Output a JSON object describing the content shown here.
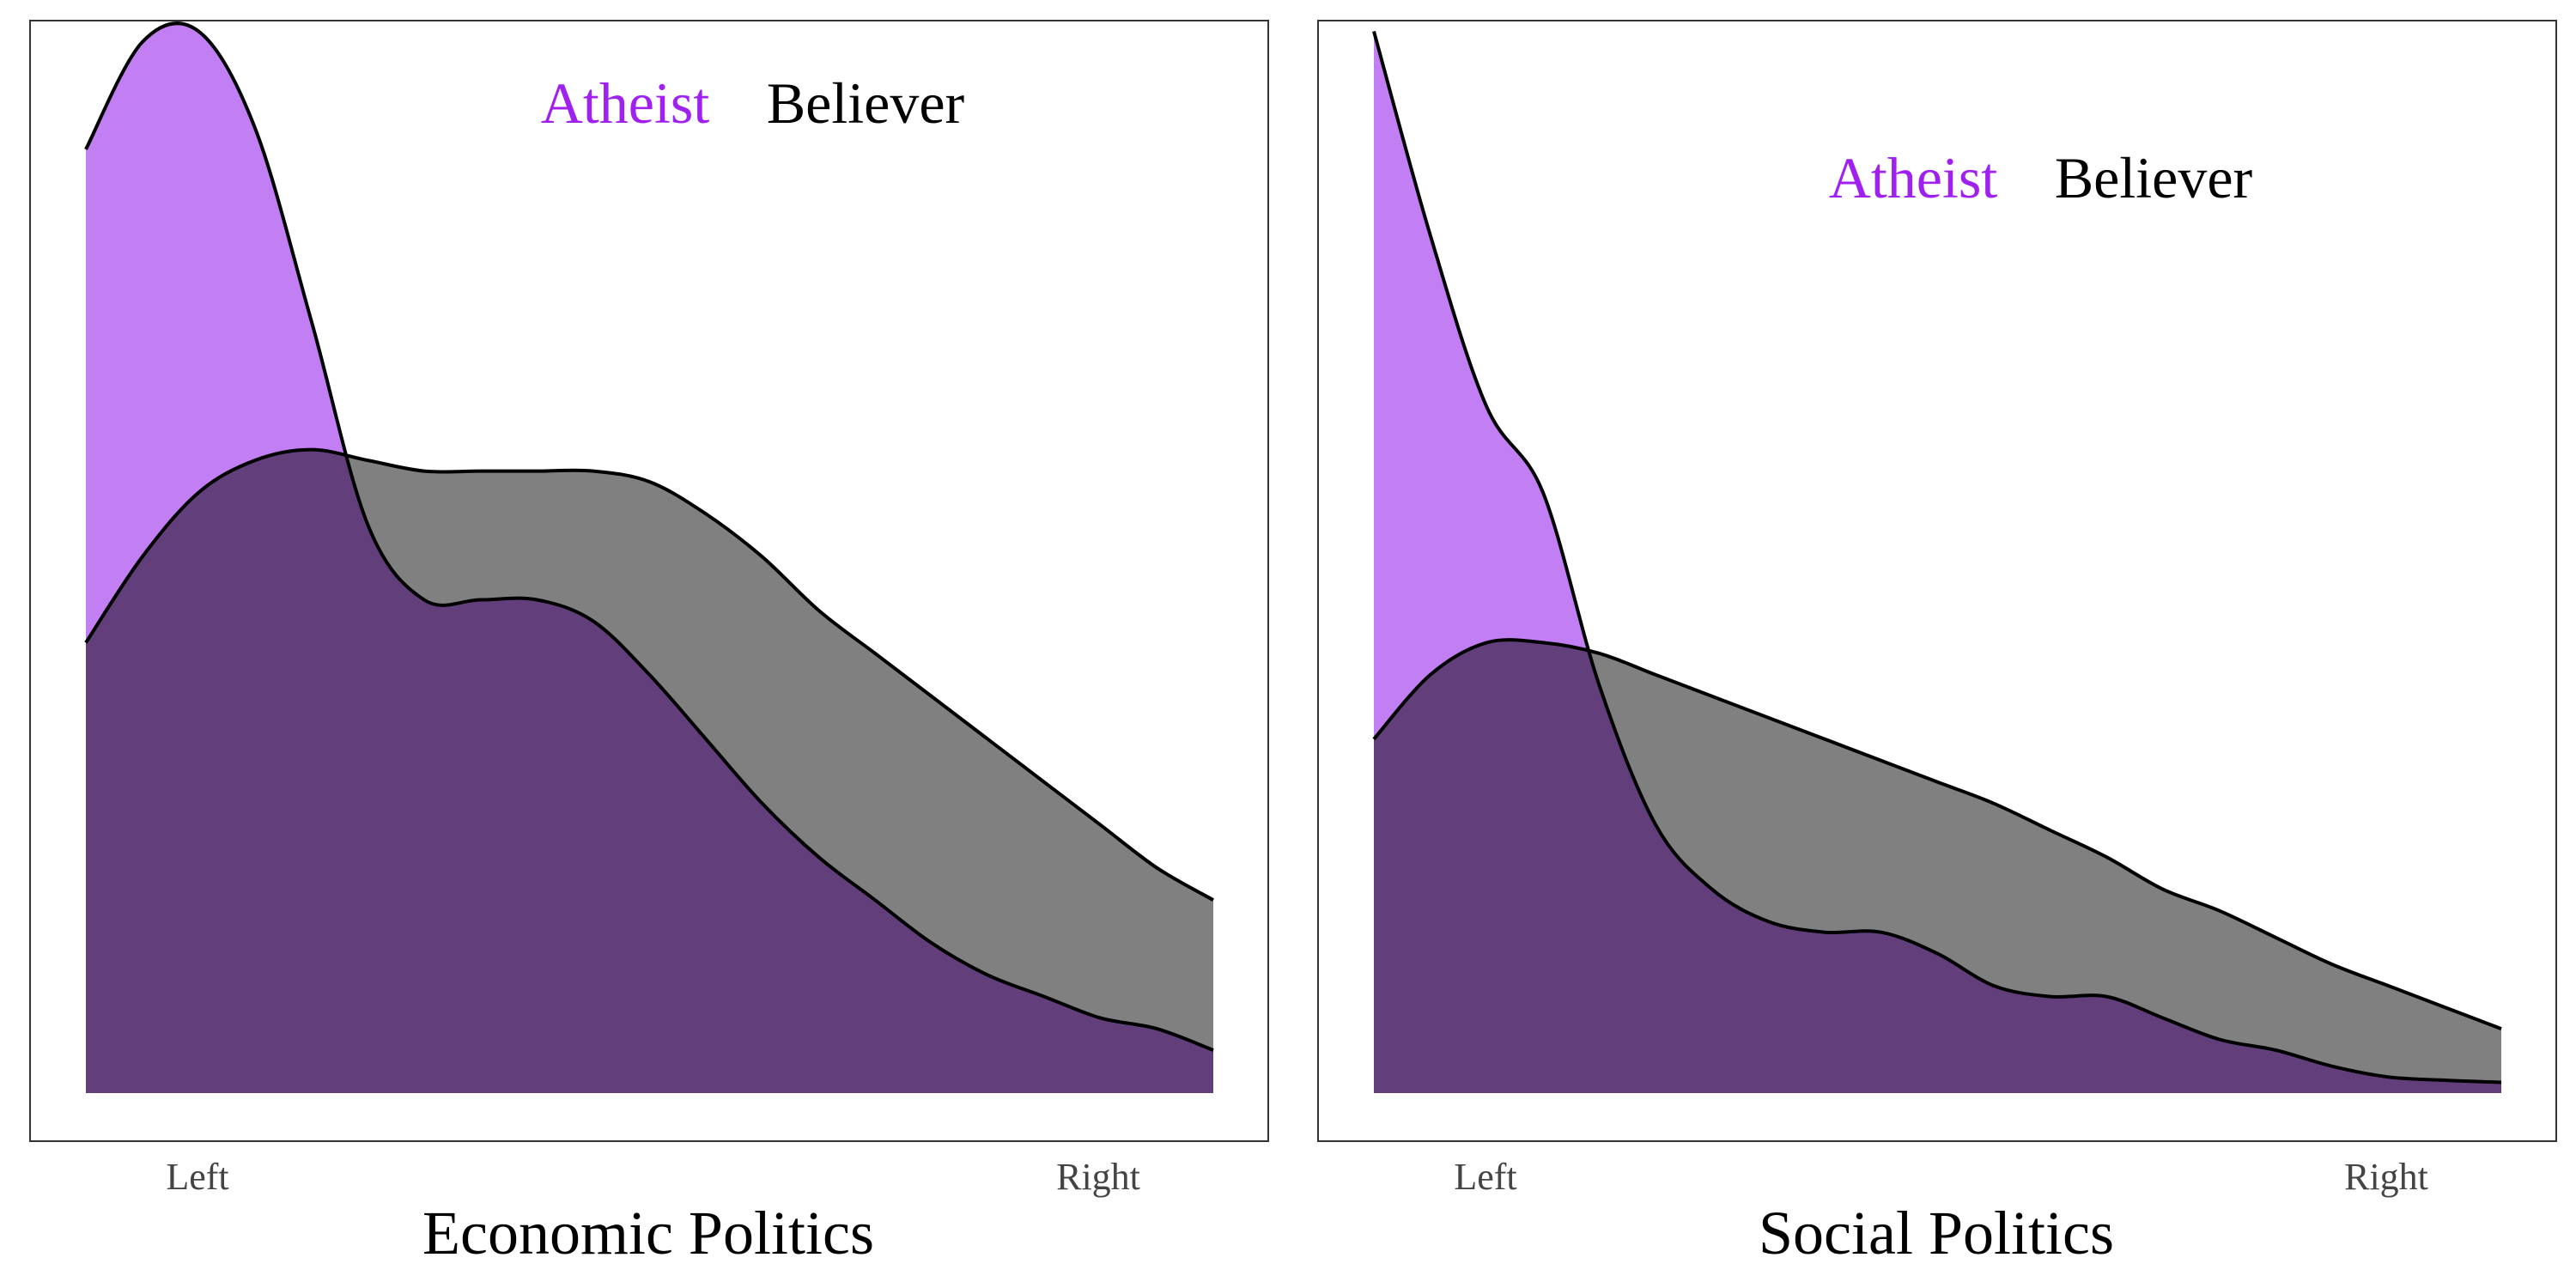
{
  "colors": {
    "atheist": "#a020f0",
    "atheist_fill": "#c27ef3",
    "believer": "#000000",
    "believer_fill": "#808080",
    "overlap_fill": "#623f7b",
    "frame": "#333333"
  },
  "chart_data": [
    {
      "type": "area",
      "title": "",
      "xlabel": "Economic Politics",
      "ylabel": "",
      "xlim": [
        0,
        1
      ],
      "ylim": [
        0,
        1
      ],
      "x_ticks": [
        {
          "x": 0.1,
          "label": "Left"
        },
        {
          "x": 0.9,
          "label": "Right"
        }
      ],
      "legend": {
        "placement": "top-center",
        "entries": [
          "Atheist",
          "Believer"
        ]
      },
      "grid": false,
      "x": [
        0,
        0.05,
        0.1,
        0.15,
        0.2,
        0.25,
        0.3,
        0.35,
        0.4,
        0.45,
        0.5,
        0.55,
        0.6,
        0.65,
        0.7,
        0.75,
        0.8,
        0.85,
        0.9,
        0.95,
        1
      ],
      "series": [
        {
          "name": "Atheist",
          "values": [
            0.88,
            0.98,
            0.99,
            0.9,
            0.72,
            0.53,
            0.46,
            0.46,
            0.46,
            0.44,
            0.39,
            0.33,
            0.27,
            0.22,
            0.18,
            0.14,
            0.11,
            0.09,
            0.07,
            0.06,
            0.04
          ]
        },
        {
          "name": "Believer",
          "values": [
            0.42,
            0.5,
            0.56,
            0.59,
            0.6,
            0.59,
            0.58,
            0.58,
            0.58,
            0.58,
            0.57,
            0.54,
            0.5,
            0.45,
            0.41,
            0.37,
            0.33,
            0.29,
            0.25,
            0.21,
            0.18
          ]
        }
      ]
    },
    {
      "type": "area",
      "title": "",
      "xlabel": "Social Politics",
      "ylabel": "",
      "xlim": [
        0,
        1
      ],
      "ylim": [
        0,
        1
      ],
      "x_ticks": [
        {
          "x": 0.1,
          "label": "Left"
        },
        {
          "x": 0.9,
          "label": "Right"
        }
      ],
      "legend": {
        "placement": "top-right",
        "entries": [
          "Atheist",
          "Believer"
        ]
      },
      "grid": false,
      "x": [
        0,
        0.05,
        0.1,
        0.15,
        0.2,
        0.25,
        0.3,
        0.35,
        0.4,
        0.45,
        0.5,
        0.55,
        0.6,
        0.65,
        0.7,
        0.75,
        0.8,
        0.85,
        0.9,
        0.95,
        1
      ],
      "series": [
        {
          "name": "Atheist",
          "values": [
            0.99,
            0.8,
            0.64,
            0.56,
            0.38,
            0.25,
            0.19,
            0.16,
            0.15,
            0.15,
            0.13,
            0.1,
            0.09,
            0.09,
            0.07,
            0.05,
            0.04,
            0.025,
            0.015,
            0.012,
            0.01
          ]
        },
        {
          "name": "Believer",
          "values": [
            0.33,
            0.39,
            0.42,
            0.42,
            0.41,
            0.39,
            0.37,
            0.35,
            0.33,
            0.31,
            0.29,
            0.27,
            0.245,
            0.22,
            0.19,
            0.17,
            0.145,
            0.12,
            0.1,
            0.08,
            0.06
          ]
        }
      ]
    }
  ]
}
